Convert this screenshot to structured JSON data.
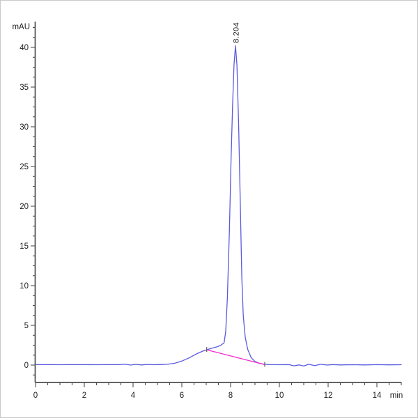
{
  "chart_data": {
    "type": "line",
    "title": "",
    "ylabel": "mAU",
    "xlabel": "min",
    "xlim": [
      0,
      15
    ],
    "ylim": [
      -2.2,
      42.6
    ],
    "grid": false,
    "legend": "none",
    "x_major_ticks": [
      0,
      2,
      4,
      6,
      8,
      10,
      12,
      14
    ],
    "x_minor_step": 0.5,
    "y_major_ticks": [
      0,
      5,
      10,
      15,
      20,
      25,
      30,
      35,
      40
    ],
    "y_minor_step": 1.25,
    "colors": {
      "trace": "#5a5ade",
      "integration_baseline": "#f42ad0",
      "axis": "#4d4d4d",
      "text": "#1c1c1c"
    },
    "peaks": [
      {
        "retention_time_label": "8.204",
        "t": 8.204,
        "height_mau": 40.2
      }
    ],
    "integration_marks": [
      {
        "t": 7.02,
        "h": 1.92
      },
      {
        "t": 9.4,
        "h": 0.05
      }
    ],
    "series": [
      {
        "name": "detector-signal",
        "color_key": "trace",
        "points": [
          [
            0,
            0.05
          ],
          [
            0.5,
            0.05
          ],
          [
            1,
            0.04
          ],
          [
            1.5,
            0.05
          ],
          [
            2,
            0.05
          ],
          [
            2.5,
            0.04
          ],
          [
            3,
            0.05
          ],
          [
            3.4,
            0.05
          ],
          [
            3.7,
            0.1
          ],
          [
            3.9,
            0.0
          ],
          [
            4.1,
            0.09
          ],
          [
            4.35,
            0.02
          ],
          [
            4.6,
            0.08
          ],
          [
            4.8,
            0.04
          ],
          [
            5.1,
            0.06
          ],
          [
            5.4,
            0.1
          ],
          [
            5.7,
            0.22
          ],
          [
            6.0,
            0.5
          ],
          [
            6.3,
            0.9
          ],
          [
            6.6,
            1.4
          ],
          [
            6.85,
            1.75
          ],
          [
            7.02,
            1.92
          ],
          [
            7.2,
            2.1
          ],
          [
            7.45,
            2.3
          ],
          [
            7.6,
            2.5
          ],
          [
            7.73,
            2.8
          ],
          [
            7.8,
            4.2
          ],
          [
            7.87,
            8.5
          ],
          [
            7.95,
            17
          ],
          [
            8.02,
            26
          ],
          [
            8.08,
            32.5
          ],
          [
            8.14,
            37.8
          ],
          [
            8.2,
            40.2
          ],
          [
            8.26,
            37.8
          ],
          [
            8.33,
            30
          ],
          [
            8.4,
            20
          ],
          [
            8.46,
            11
          ],
          [
            8.52,
            6.2
          ],
          [
            8.6,
            3.5
          ],
          [
            8.7,
            2.0
          ],
          [
            8.84,
            0.95
          ],
          [
            9.0,
            0.45
          ],
          [
            9.2,
            0.2
          ],
          [
            9.4,
            0.1
          ],
          [
            9.6,
            0.05
          ],
          [
            10.0,
            0.04
          ],
          [
            10.4,
            0.05
          ],
          [
            10.6,
            -0.1
          ],
          [
            10.8,
            0.02
          ],
          [
            11.0,
            -0.12
          ],
          [
            11.2,
            0.1
          ],
          [
            11.45,
            -0.06
          ],
          [
            11.7,
            0.1
          ],
          [
            11.95,
            0.0
          ],
          [
            12.2,
            0.06
          ],
          [
            12.5,
            0.02
          ],
          [
            13.0,
            0.04
          ],
          [
            13.5,
            0.02
          ],
          [
            14.0,
            0.05
          ],
          [
            14.5,
            0.03
          ],
          [
            15.0,
            0.04
          ]
        ]
      },
      {
        "name": "integration-baseline",
        "color_key": "integration_baseline",
        "points": [
          [
            7.02,
            1.92
          ],
          [
            9.4,
            0.05
          ]
        ]
      }
    ]
  }
}
